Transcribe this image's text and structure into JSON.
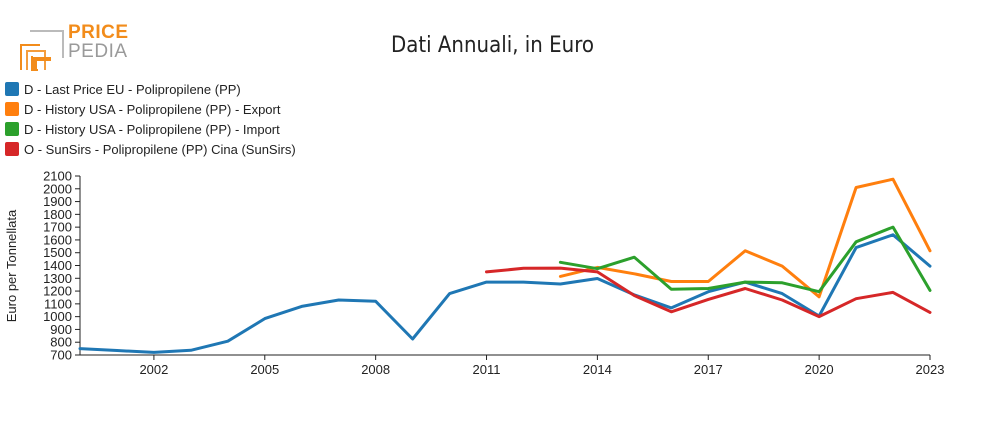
{
  "logo": {
    "line1": "PRICE",
    "line2": "PEDIA"
  },
  "chart_data": {
    "type": "line",
    "title": "Dati Annuali, in Euro",
    "ylabel": "Euro per Tonnellata",
    "xlabel": "",
    "ylim": [
      700,
      2100
    ],
    "yticks": [
      700,
      800,
      900,
      1000,
      1100,
      1200,
      1300,
      1400,
      1500,
      1600,
      1700,
      1800,
      1900,
      2000,
      2100
    ],
    "xlim": [
      2000,
      2023
    ],
    "xticks": [
      2002,
      2005,
      2008,
      2011,
      2014,
      2017,
      2020,
      2023
    ],
    "legend_position": "top-left",
    "series": [
      {
        "name": "D - Last Price EU - Polipropilene (PP)",
        "color": "#1f77b4",
        "x": [
          2000,
          2001,
          2002,
          2003,
          2004,
          2005,
          2006,
          2007,
          2008,
          2009,
          2010,
          2011,
          2012,
          2013,
          2014,
          2015,
          2016,
          2017,
          2018,
          2019,
          2020,
          2021,
          2022,
          2023
        ],
        "values": [
          750,
          735,
          720,
          737,
          808,
          985,
          1080,
          1130,
          1120,
          825,
          1180,
          1270,
          1270,
          1255,
          1298,
          1170,
          1068,
          1195,
          1270,
          1180,
          1005,
          1540,
          1640,
          1395
        ]
      },
      {
        "name": "D - History USA - Polipropilene (PP) - Export",
        "color": "#ff7f0e",
        "x": [
          2013,
          2014,
          2015,
          2016,
          2017,
          2018,
          2019,
          2020,
          2021,
          2022,
          2023
        ],
        "values": [
          1315,
          1385,
          1335,
          1275,
          1275,
          1515,
          1395,
          1155,
          2010,
          2075,
          1515
        ]
      },
      {
        "name": "D - History USA - Polipropilene (PP) - Import",
        "color": "#2ca02c",
        "x": [
          2013,
          2014,
          2015,
          2016,
          2017,
          2018,
          2019,
          2020,
          2021,
          2022,
          2023
        ],
        "values": [
          1425,
          1375,
          1465,
          1215,
          1220,
          1270,
          1265,
          1195,
          1585,
          1700,
          1205
        ]
      },
      {
        "name": "O - SunSirs - Polipropilene (PP) Cina (SunSirs)",
        "color": "#d62728",
        "x": [
          2011,
          2012,
          2013,
          2014,
          2015,
          2016,
          2017,
          2018,
          2019,
          2020,
          2021,
          2022,
          2023
        ],
        "values": [
          1350,
          1378,
          1380,
          1350,
          1165,
          1038,
          1135,
          1220,
          1130,
          1000,
          1140,
          1190,
          1033
        ]
      }
    ]
  }
}
